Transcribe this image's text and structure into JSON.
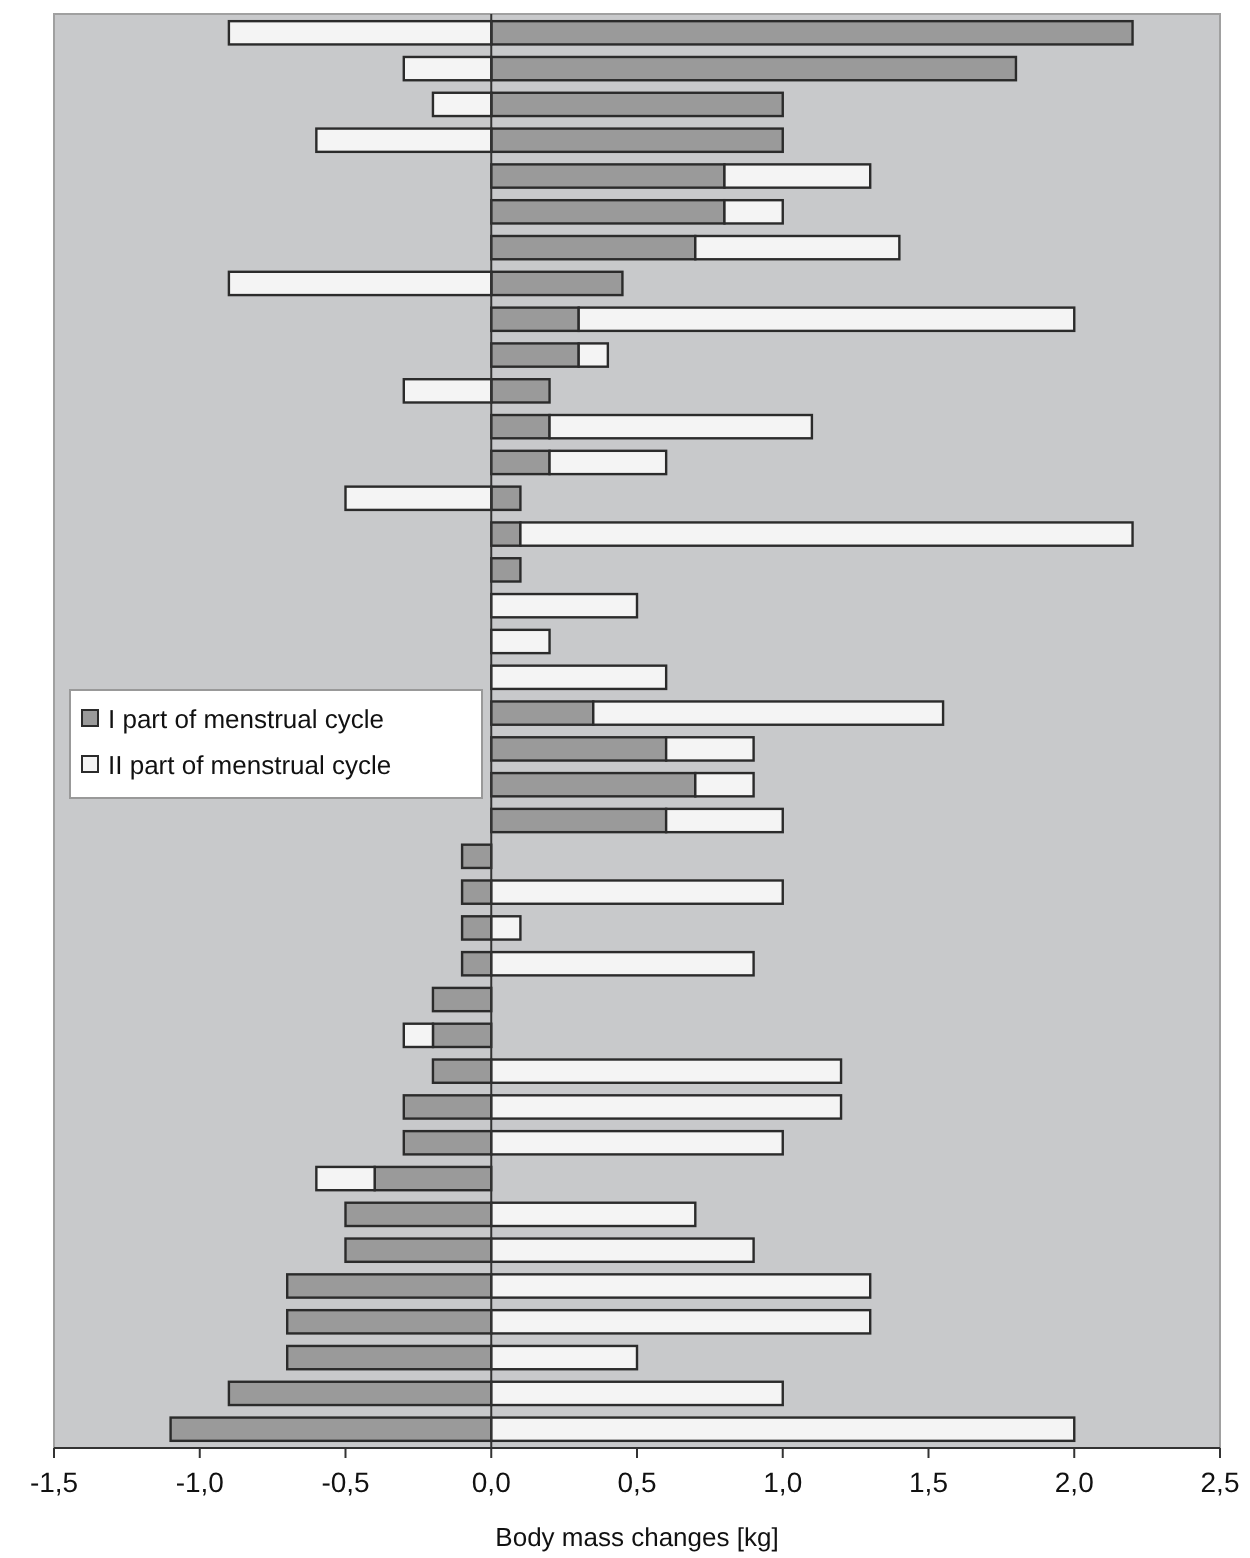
{
  "chart_data": {
    "type": "bar",
    "orientation": "horizontal",
    "stacked": true,
    "xlabel": "Body mass changes [kg]",
    "categories": [
      null,
      null,
      null,
      null,
      null,
      null,
      null,
      null,
      null,
      null,
      null,
      null,
      null,
      null,
      null,
      null,
      null,
      null,
      null,
      null,
      null,
      null,
      null,
      null,
      null,
      null,
      null,
      null,
      null,
      null,
      null,
      null,
      null,
      null,
      null,
      null,
      null,
      null,
      null,
      null
    ],
    "series": [
      {
        "name": "I part of menstrual cycle",
        "color": "#9a9a9a",
        "values": [
          2.2,
          1.8,
          1.0,
          1.0,
          0.8,
          0.8,
          0.7,
          0.45,
          0.3,
          0.3,
          0.2,
          0.2,
          0.2,
          0.1,
          0.1,
          0.1,
          0,
          0,
          0,
          0.35,
          0.6,
          0.7,
          0.6,
          -0.1,
          -0.1,
          -0.1,
          -0.1,
          -0.2,
          -0.2,
          -0.2,
          -0.3,
          -0.3,
          -0.4,
          -0.5,
          -0.5,
          -0.7,
          -0.7,
          -0.7,
          -0.9,
          -1.1
        ]
      },
      {
        "name": "II part of menstrual cycle",
        "color": "#f4f4f4",
        "values": [
          -0.9,
          -0.3,
          -0.2,
          -0.6,
          0.5,
          0.2,
          0.7,
          -0.9,
          1.7,
          0.1,
          -0.3,
          0.9,
          0.4,
          -0.5,
          2.1,
          0,
          0.5,
          0.2,
          0.6,
          1.2,
          0.3,
          0.2,
          0.4,
          0,
          1.0,
          0.1,
          0.9,
          0,
          -0.1,
          1.2,
          1.2,
          1.0,
          -0.2,
          0.7,
          0.9,
          1.3,
          1.3,
          0.5,
          1.0,
          2.0
        ]
      }
    ],
    "xlim": [
      -1.5,
      2.5
    ],
    "xticks": [
      {
        "value": -1.5,
        "label": "-1,5"
      },
      {
        "value": -1,
        "label": "-1,0"
      },
      {
        "value": -0.5,
        "label": "-0,5"
      },
      {
        "value": 0,
        "label": "0,0"
      },
      {
        "value": 0.5,
        "label": "0,5"
      },
      {
        "value": 1,
        "label": "1,0"
      },
      {
        "value": 1.5,
        "label": "1,5"
      },
      {
        "value": 2,
        "label": "2,0"
      },
      {
        "value": 2.5,
        "label": "2,5"
      }
    ],
    "legend": "left"
  }
}
